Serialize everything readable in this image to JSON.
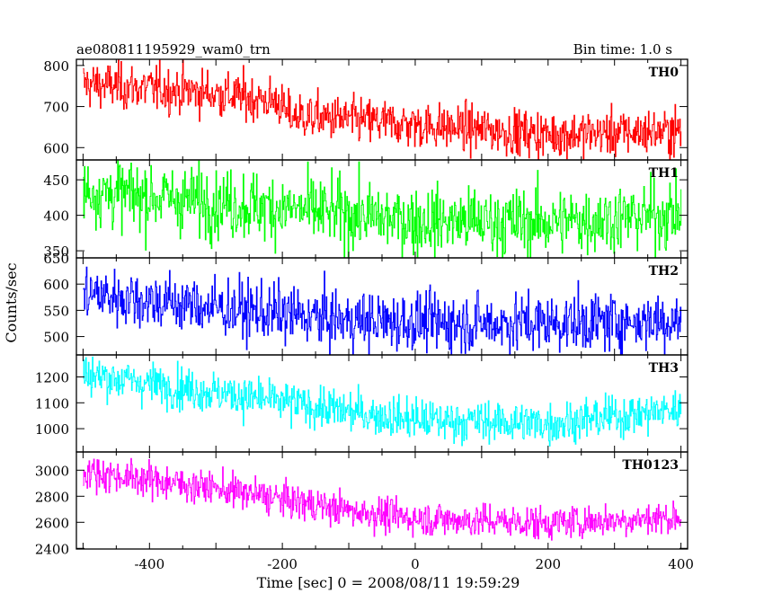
{
  "header": {
    "title": "ae080811195929_wam0_trn",
    "bin_time": "Bin time: 1.0 s"
  },
  "chart_data": {
    "type": "line",
    "ylabel": "Counts/sec",
    "xlabel": "Time [sec] 0 = 2008/08/11 19:59:29",
    "x": {
      "start": -500,
      "end": 400,
      "step": 1.0,
      "xlim": [
        -510,
        410
      ],
      "ticks": [
        -400,
        -200,
        0,
        200,
        400
      ]
    },
    "panels": [
      {
        "name": "TH0",
        "color": "#ff0000",
        "ylim": [
          570,
          815
        ],
        "yticks": [
          600,
          700,
          800
        ],
        "trend": [
          [
            -500,
            755
          ],
          [
            -320,
            735
          ],
          [
            -205,
            712
          ],
          [
            -195,
            680
          ],
          [
            0,
            655
          ],
          [
            200,
            632
          ],
          [
            400,
            640
          ]
        ],
        "noise": 28
      },
      {
        "name": "TH1",
        "color": "#00ff00",
        "ylim": [
          340,
          478
        ],
        "yticks": [
          350,
          400,
          450
        ],
        "trend": [
          [
            -500,
            435
          ],
          [
            -300,
            418
          ],
          [
            -200,
            410
          ],
          [
            0,
            392
          ],
          [
            200,
            390
          ],
          [
            400,
            402
          ]
        ],
        "noise": 24
      },
      {
        "name": "TH2",
        "color": "#0000ff",
        "ylim": [
          465,
          650
        ],
        "yticks": [
          500,
          550,
          600,
          650
        ],
        "trend": [
          [
            -500,
            583
          ],
          [
            -300,
            555
          ],
          [
            -100,
            530
          ],
          [
            100,
            525
          ],
          [
            300,
            528
          ],
          [
            400,
            532
          ]
        ],
        "noise": 28
      },
      {
        "name": "TH3",
        "color": "#00ffff",
        "ylim": [
          910,
          1285
        ],
        "yticks": [
          1000,
          1100,
          1200
        ],
        "trend": [
          [
            -500,
            1210
          ],
          [
            -300,
            1140
          ],
          [
            -100,
            1065
          ],
          [
            0,
            1035
          ],
          [
            200,
            1020
          ],
          [
            400,
            1075
          ]
        ],
        "noise": 40
      },
      {
        "name": "TH0123",
        "color": "#ff00ff",
        "ylim": [
          2395,
          3140
        ],
        "yticks": [
          2400,
          2600,
          2800,
          3000
        ],
        "trend": [
          [
            -500,
            2990
          ],
          [
            -300,
            2860
          ],
          [
            -100,
            2690
          ],
          [
            0,
            2630
          ],
          [
            200,
            2595
          ],
          [
            400,
            2640
          ]
        ],
        "noise": 65
      }
    ]
  }
}
